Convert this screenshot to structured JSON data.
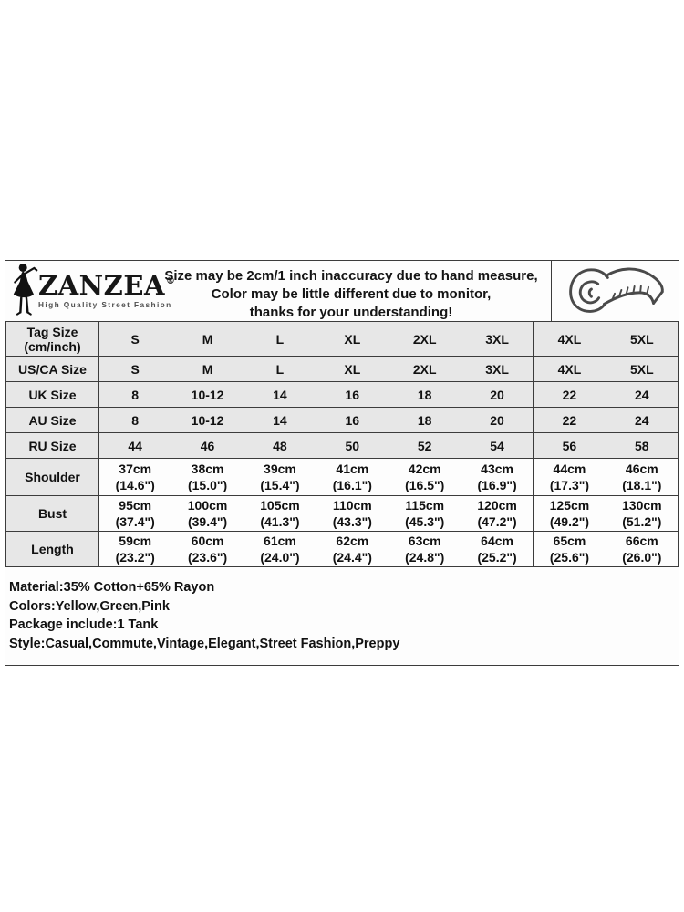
{
  "brand": {
    "name": "ZANZEA",
    "registered_mark": "®",
    "tagline": "High Quality Street Fashion"
  },
  "disclaimer": {
    "line1": "Size may be 2cm/1 inch inaccuracy due to hand measure,",
    "line2": "Color may be little different due to monitor,",
    "line3": "thanks for your understanding!"
  },
  "size_table": {
    "rows": [
      {
        "label": "Tag Size\n(cm/inch)",
        "shaded": true,
        "values": [
          "S",
          "M",
          "L",
          "XL",
          "2XL",
          "3XL",
          "4XL",
          "5XL"
        ]
      },
      {
        "label": "US/CA Size",
        "shaded": true,
        "values": [
          "S",
          "M",
          "L",
          "XL",
          "2XL",
          "3XL",
          "4XL",
          "5XL"
        ]
      },
      {
        "label": "UK Size",
        "shaded": true,
        "values": [
          "8",
          "10-12",
          "14",
          "16",
          "18",
          "20",
          "22",
          "24"
        ]
      },
      {
        "label": "AU Size",
        "shaded": true,
        "values": [
          "8",
          "10-12",
          "14",
          "16",
          "18",
          "20",
          "22",
          "24"
        ]
      },
      {
        "label": "RU Size",
        "shaded": true,
        "values": [
          "44",
          "46",
          "48",
          "50",
          "52",
          "54",
          "56",
          "58"
        ]
      },
      {
        "label": "Shoulder",
        "shaded": false,
        "values": [
          "37cm\n(14.6\")",
          "38cm\n(15.0\")",
          "39cm\n(15.4\")",
          "41cm\n(16.1\")",
          "42cm\n(16.5\")",
          "43cm\n(16.9\")",
          "44cm\n(17.3\")",
          "46cm\n(18.1\")"
        ]
      },
      {
        "label": "Bust",
        "shaded": false,
        "values": [
          "95cm\n(37.4\")",
          "100cm\n(39.4\")",
          "105cm\n(41.3\")",
          "110cm\n(43.3\")",
          "115cm\n(45.3\")",
          "120cm\n(47.2\")",
          "125cm\n(49.2\")",
          "130cm\n(51.2\")"
        ]
      },
      {
        "label": "Length",
        "shaded": false,
        "values": [
          "59cm\n(23.2\")",
          "60cm\n(23.6\")",
          "61cm\n(24.0\")",
          "62cm\n(24.4\")",
          "63cm\n(24.8\")",
          "64cm\n(25.2\")",
          "65cm\n(25.6\")",
          "66cm\n(26.0\")"
        ]
      }
    ]
  },
  "product_info": {
    "material": "Material:35% Cotton+65% Rayon",
    "colors": "Colors:Yellow,Green,Pink",
    "package": "Package include:1 Tank",
    "style": "Style:Casual,Commute,Vintage,Elegant,Street Fashion,Preppy"
  },
  "colors": {
    "page_background": "#ffffff",
    "cell_background": "#fdfdfd",
    "shaded_cell": "#e7e7e7",
    "border": "#3c3c3c",
    "text": "#111111",
    "tape_icon_stroke": "#4a4a4a"
  }
}
